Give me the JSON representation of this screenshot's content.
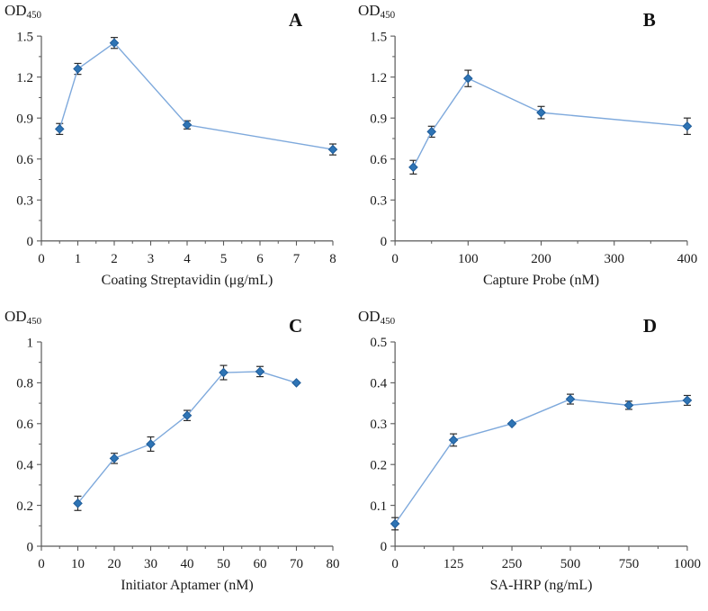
{
  "figure": {
    "background": "#ffffff",
    "description": "Four-panel optimization line charts of OD450 responses"
  },
  "style": {
    "line_color": "#7ea9dc",
    "marker_fill": "#2e74b5",
    "marker_stroke": "#1f5c99",
    "error_color": "#2b2b2b",
    "axis_color": "#595959",
    "text_color": "#1a1a1a",
    "panel_letter_color": "#111111"
  },
  "chart_data": [
    {
      "type": "line",
      "panel_label": "A",
      "y_axis": {
        "title": "OD",
        "title_sub": "450",
        "min": 0,
        "max": 1.5,
        "tick_values": [
          0,
          0.3,
          0.6,
          0.9,
          1.2,
          1.5
        ],
        "tick_labels": [
          "0",
          "0.3",
          "0.6",
          "0.9",
          "1.2",
          "1.5"
        ],
        "minor_step": 0.15
      },
      "x_axis": {
        "title": "Coating Streptavidin (μg/mL)",
        "type": "linear",
        "min": 0,
        "max": 8,
        "tick_values": [
          0,
          1,
          2,
          3,
          4,
          5,
          6,
          7,
          8
        ],
        "tick_labels": [
          "0",
          "1",
          "2",
          "3",
          "4",
          "5",
          "6",
          "7",
          "8"
        ],
        "minor_step": 0.5
      },
      "series": [
        {
          "name": "OD450 vs coating streptavidin",
          "x": [
            0.5,
            1,
            2,
            4,
            8
          ],
          "y": [
            0.82,
            1.26,
            1.45,
            0.85,
            0.67
          ],
          "yerr": [
            0.04,
            0.04,
            0.04,
            0.03,
            0.04
          ]
        }
      ]
    },
    {
      "type": "line",
      "panel_label": "B",
      "y_axis": {
        "title": "OD",
        "title_sub": "450",
        "min": 0,
        "max": 1.5,
        "tick_values": [
          0,
          0.3,
          0.6,
          0.9,
          1.2,
          1.5
        ],
        "tick_labels": [
          "0",
          "0.3",
          "0.6",
          "0.9",
          "1.2",
          "1.5"
        ],
        "minor_step": 0.15
      },
      "x_axis": {
        "title": "Capture Probe (nM)",
        "type": "linear",
        "min": 0,
        "max": 400,
        "tick_values": [
          0,
          100,
          200,
          300,
          400
        ],
        "tick_labels": [
          "0",
          "100",
          "200",
          "300",
          "400"
        ],
        "minor_step": 50
      },
      "series": [
        {
          "name": "OD450 vs capture probe",
          "x": [
            25,
            50,
            100,
            200,
            400
          ],
          "y": [
            0.54,
            0.8,
            1.19,
            0.94,
            0.84
          ],
          "yerr": [
            0.05,
            0.04,
            0.06,
            0.045,
            0.06
          ]
        }
      ]
    },
    {
      "type": "line",
      "panel_label": "C",
      "y_axis": {
        "title": "OD",
        "title_sub": "450",
        "min": 0,
        "max": 1,
        "tick_values": [
          0,
          0.2,
          0.4,
          0.6,
          0.8,
          1
        ],
        "tick_labels": [
          "0",
          "0.2",
          "0.4",
          "0.6",
          "0.8",
          "1"
        ],
        "minor_step": 0.1
      },
      "x_axis": {
        "title": "Initiator Aptamer (nM)",
        "type": "linear",
        "min": 0,
        "max": 80,
        "tick_values": [
          0,
          10,
          20,
          30,
          40,
          50,
          60,
          70,
          80
        ],
        "tick_labels": [
          "0",
          "10",
          "20",
          "30",
          "40",
          "50",
          "60",
          "70",
          "80"
        ],
        "minor_step": 5
      },
      "series": [
        {
          "name": "OD450 vs initiator aptamer",
          "x": [
            10,
            20,
            30,
            40,
            50,
            60,
            70
          ],
          "y": [
            0.21,
            0.43,
            0.5,
            0.64,
            0.85,
            0.855,
            0.8
          ],
          "yerr": [
            0.035,
            0.025,
            0.035,
            0.025,
            0.035,
            0.025,
            0
          ]
        }
      ]
    },
    {
      "type": "line",
      "panel_label": "D",
      "y_axis": {
        "title": "OD",
        "title_sub": "450",
        "min": 0,
        "max": 0.5,
        "tick_values": [
          0,
          0.1,
          0.2,
          0.3,
          0.4,
          0.5
        ],
        "tick_labels": [
          "0",
          "0.1",
          "0.2",
          "0.3",
          "0.4",
          "0.5"
        ],
        "minor_step": 0.05
      },
      "x_axis": {
        "title": "SA-HRP (ng/mL)",
        "type": "category",
        "tick_values": [
          0,
          125,
          250,
          500,
          750,
          1000
        ],
        "tick_labels": [
          "0",
          "125",
          "250",
          "500",
          "750",
          "1000"
        ]
      },
      "series": [
        {
          "name": "OD450 vs SA-HRP",
          "x": [
            0,
            125,
            250,
            500,
            750,
            1000
          ],
          "y": [
            0.055,
            0.26,
            0.3,
            0.36,
            0.345,
            0.357
          ],
          "yerr": [
            0.015,
            0.015,
            0,
            0.012,
            0.01,
            0.012
          ]
        }
      ]
    }
  ]
}
